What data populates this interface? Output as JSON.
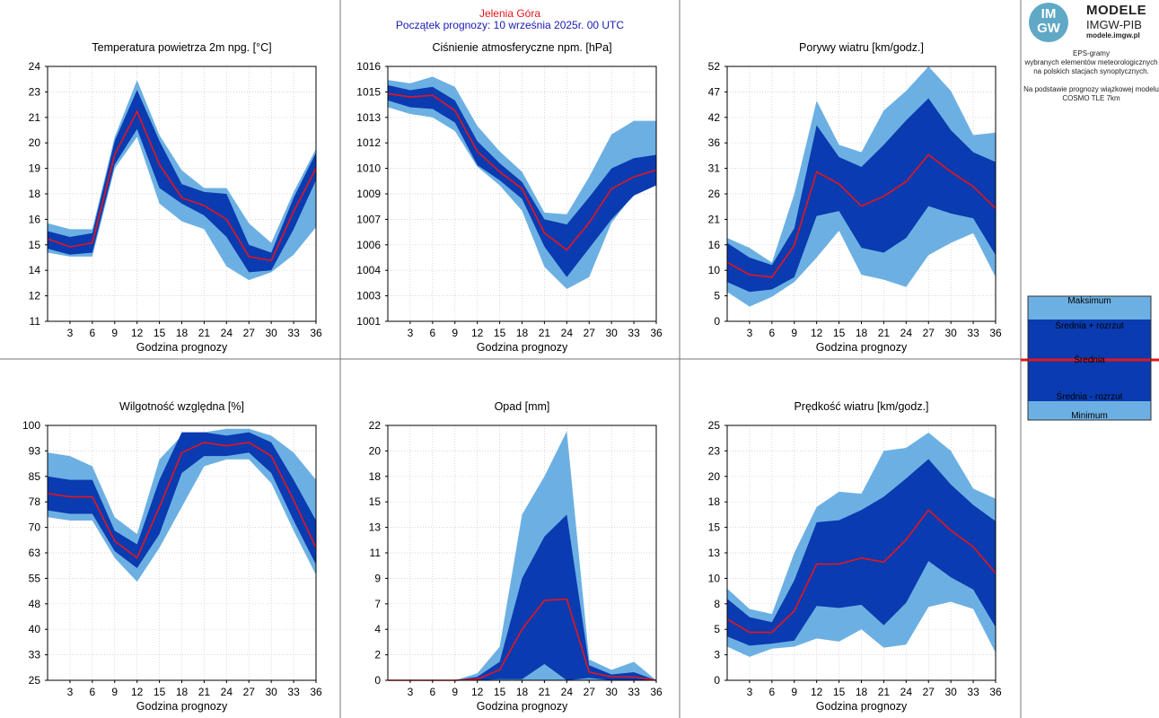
{
  "header": {
    "station": "Jelenia Góra",
    "forecast_start": "Początek prognozy: 10 września 2025r. 00 UTC"
  },
  "logo": {
    "badge_top": "IM",
    "badge_bottom": "GW",
    "line1": "MODELE",
    "line2": "IMGW-PIB",
    "line3": "modele.imgw.pl"
  },
  "info": {
    "line1": "EPS-gramy",
    "line2": "wybranych elementów meteorologicznych",
    "line3": "na polskich stacjach  synoptycznych.",
    "line4": "Na podstawie prognozy wiązkowej modelu",
    "line5": "COSMO TLE 7km"
  },
  "legend": {
    "max": "Maksimum",
    "mean_plus": "Średnia + rozrzut",
    "mean": "Średnia",
    "mean_minus": "Średnia - rozrzut",
    "min": "Minimum"
  },
  "colors": {
    "outer_band": "#6cb0e3",
    "inner_band": "#0a3bb0",
    "mean_line": "#e8141b",
    "frame": "#000000",
    "grid": "#c8c8c8"
  },
  "chart_data": [
    {
      "type": "area",
      "title": "Temperatura powietrza 2m npg. [°C]",
      "xlabel": "Godzina prognozy",
      "ylabel": "",
      "x": [
        0,
        3,
        6,
        9,
        12,
        15,
        18,
        21,
        24,
        27,
        30,
        33,
        36
      ],
      "xticks": [
        3,
        6,
        9,
        12,
        15,
        18,
        21,
        24,
        27,
        30,
        33,
        36
      ],
      "ylim": [
        11,
        24
      ],
      "yticks": [
        "11",
        "12",
        "14",
        "15",
        "16",
        "18",
        "19",
        "20",
        "21",
        "23",
        "24"
      ],
      "grid": true,
      "series": [
        {
          "name": "Maksimum",
          "values": [
            16.0,
            15.7,
            15.7,
            20.4,
            23.3,
            20.5,
            18.7,
            17.8,
            17.8,
            16.0,
            15.0,
            17.6,
            19.8
          ]
        },
        {
          "name": "Średnia + rozrzut",
          "values": [
            15.6,
            15.3,
            15.5,
            20.2,
            22.8,
            20.2,
            18.0,
            17.6,
            17.5,
            14.9,
            14.5,
            17.3,
            19.6
          ]
        },
        {
          "name": "Średnia",
          "values": [
            15.2,
            14.8,
            15.0,
            19.5,
            21.7,
            19.0,
            17.3,
            16.9,
            16.2,
            14.3,
            14.1,
            16.6,
            18.8
          ]
        },
        {
          "name": "Średnia - rozrzut",
          "values": [
            14.7,
            14.4,
            14.5,
            19.0,
            20.8,
            17.8,
            17.0,
            16.4,
            15.3,
            13.5,
            13.6,
            15.7,
            18.2
          ]
        },
        {
          "name": "Minimum",
          "values": [
            14.5,
            14.3,
            14.3,
            18.8,
            20.4,
            17.0,
            16.1,
            15.7,
            13.8,
            13.1,
            13.5,
            14.4,
            15.8
          ]
        }
      ]
    },
    {
      "type": "area",
      "title": "Ciśnienie atmosferyczne npm. [hPa]",
      "xlabel": "Godzina prognozy",
      "ylabel": "",
      "x": [
        0,
        3,
        6,
        9,
        12,
        15,
        18,
        21,
        24,
        27,
        30,
        33,
        36
      ],
      "xticks": [
        3,
        6,
        9,
        12,
        15,
        18,
        21,
        24,
        27,
        30,
        33,
        36
      ],
      "ylim": [
        1001,
        1016
      ],
      "yticks": [
        "1001",
        "1003",
        "1004",
        "1006",
        "1007",
        "1009",
        "1010",
        "1012",
        "1013",
        "1015",
        "1016"
      ],
      "grid": true,
      "series": [
        {
          "name": "Maksimum",
          "values": [
            1015.2,
            1015.0,
            1015.4,
            1014.8,
            1012.5,
            1011.0,
            1009.8,
            1007.4,
            1007.3,
            1009.5,
            1012.0,
            1012.8,
            1012.8
          ]
        },
        {
          "name": "Średnia + rozrzut",
          "values": [
            1014.9,
            1014.6,
            1014.8,
            1014.0,
            1011.6,
            1010.3,
            1009.2,
            1007.0,
            1006.7,
            1008.3,
            1010.0,
            1010.6,
            1010.8
          ]
        },
        {
          "name": "Średnia",
          "values": [
            1014.4,
            1014.2,
            1014.3,
            1013.4,
            1011.0,
            1009.8,
            1008.8,
            1006.2,
            1005.2,
            1006.8,
            1008.8,
            1009.5,
            1009.9
          ]
        },
        {
          "name": "Średnia - rozrzut",
          "values": [
            1014.0,
            1013.6,
            1013.5,
            1012.7,
            1010.2,
            1009.3,
            1008.2,
            1005.4,
            1003.6,
            1005.3,
            1007.0,
            1008.4,
            1009.0
          ]
        },
        {
          "name": "Minimum",
          "values": [
            1013.6,
            1013.2,
            1013.0,
            1012.2,
            1010.1,
            1009.0,
            1007.5,
            1004.2,
            1002.9,
            1003.6,
            1006.8,
            1008.5,
            1009.2
          ]
        }
      ]
    },
    {
      "type": "area",
      "title": "Porywy wiatru [km/godz.]",
      "xlabel": "Godzina prognozy",
      "ylabel": "",
      "x": [
        0,
        3,
        6,
        9,
        12,
        15,
        18,
        21,
        24,
        27,
        30,
        33,
        36
      ],
      "xticks": [
        3,
        6,
        9,
        12,
        15,
        18,
        21,
        24,
        27,
        30,
        33,
        36
      ],
      "ylim": [
        0,
        52
      ],
      "yticks": [
        "0",
        "5",
        "10",
        "16",
        "21",
        "26",
        "31",
        "36",
        "42",
        "47",
        "52"
      ],
      "grid": true,
      "series": [
        {
          "name": "Maksimum",
          "values": [
            17.0,
            15.0,
            12.0,
            26.0,
            45.0,
            36.0,
            34.5,
            43.0,
            47.0,
            52.0,
            47.0,
            38.0,
            38.5
          ]
        },
        {
          "name": "Średnia + rozrzut",
          "values": [
            16.0,
            13.0,
            11.5,
            19.0,
            40.0,
            33.5,
            31.5,
            36.0,
            41.0,
            45.5,
            39.0,
            34.5,
            32.5
          ]
        },
        {
          "name": "Średnia",
          "values": [
            12.0,
            9.5,
            9.0,
            15.5,
            30.5,
            28.0,
            23.5,
            25.5,
            28.5,
            34.0,
            30.5,
            27.5,
            23.0
          ]
        },
        {
          "name": "Średnia - rozrzut",
          "values": [
            8.0,
            6.0,
            6.5,
            9.0,
            21.5,
            22.5,
            15.0,
            14.0,
            17.0,
            23.5,
            22.0,
            21.0,
            13.5
          ]
        },
        {
          "name": "Minimum",
          "values": [
            6.0,
            3.0,
            5.0,
            8.0,
            13.0,
            18.5,
            9.5,
            8.5,
            7.0,
            13.5,
            16.0,
            18.0,
            9.0
          ]
        }
      ]
    },
    {
      "type": "area",
      "title": "Wilgotność względna [%]",
      "xlabel": "Godzina prognozy",
      "ylabel": "",
      "x": [
        0,
        3,
        6,
        9,
        12,
        15,
        18,
        21,
        24,
        27,
        30,
        33,
        36
      ],
      "xticks": [
        3,
        6,
        9,
        12,
        15,
        18,
        21,
        24,
        27,
        30,
        33,
        36
      ],
      "ylim": [
        25,
        100
      ],
      "yticks": [
        "25",
        "33",
        "40",
        "48",
        "55",
        "63",
        "70",
        "78",
        "85",
        "93",
        "100"
      ],
      "grid": true,
      "series": [
        {
          "name": "Maksimum",
          "values": [
            92.0,
            91.0,
            88.0,
            73.0,
            68.0,
            90.0,
            97.0,
            98.0,
            99.0,
            99.0,
            97.0,
            92.0,
            84.0
          ]
        },
        {
          "name": "Średnia + rozrzut",
          "values": [
            85.0,
            84.0,
            84.0,
            69.0,
            65.0,
            84.0,
            98.0,
            98.0,
            97.0,
            98.0,
            95.0,
            84.0,
            72.0
          ]
        },
        {
          "name": "Średnia",
          "values": [
            80.0,
            79.0,
            79.0,
            66.0,
            61.0,
            76.0,
            92.0,
            95.0,
            94.0,
            95.0,
            91.0,
            78.0,
            64.0
          ]
        },
        {
          "name": "Średnia - rozrzut",
          "values": [
            75.0,
            74.0,
            74.0,
            63.0,
            58.0,
            68.0,
            86.0,
            91.0,
            91.0,
            92.0,
            86.0,
            72.0,
            59.0
          ]
        },
        {
          "name": "Minimum",
          "values": [
            73.0,
            72.0,
            72.0,
            61.0,
            54.0,
            64.0,
            76.0,
            88.0,
            90.0,
            90.0,
            83.0,
            69.0,
            56.0
          ]
        }
      ]
    },
    {
      "type": "area",
      "title": "Opad [mm]",
      "xlabel": "Godzina prognozy",
      "ylabel": "",
      "x": [
        0,
        3,
        6,
        9,
        12,
        15,
        18,
        21,
        24,
        27,
        30,
        33,
        36
      ],
      "xticks": [
        3,
        6,
        9,
        12,
        15,
        18,
        21,
        24,
        27,
        30,
        33,
        36
      ],
      "ylim": [
        0,
        22
      ],
      "yticks": [
        "0",
        "2",
        "4",
        "7",
        "9",
        "11",
        "13",
        "15",
        "18",
        "20",
        "22"
      ],
      "grid": true,
      "series": [
        {
          "name": "Maksimum",
          "values": [
            0.0,
            0.0,
            0.0,
            0.0,
            0.6,
            2.9,
            14.3,
            17.6,
            21.5,
            1.8,
            0.9,
            1.6,
            0.0
          ]
        },
        {
          "name": "Średnia + rozrzut",
          "values": [
            0.0,
            0.0,
            0.0,
            0.0,
            0.3,
            1.6,
            8.8,
            12.4,
            14.3,
            1.3,
            0.5,
            0.7,
            0.0
          ]
        },
        {
          "name": "Średnia",
          "values": [
            0.0,
            0.0,
            0.0,
            0.0,
            0.1,
            0.9,
            4.4,
            6.9,
            7.0,
            0.7,
            0.3,
            0.3,
            0.0
          ]
        },
        {
          "name": "Średnia - rozrzut",
          "values": [
            0.0,
            0.0,
            0.0,
            0.0,
            0.0,
            0.1,
            0.1,
            1.4,
            0.0,
            0.2,
            0.0,
            0.0,
            0.0
          ]
        },
        {
          "name": "Minimum",
          "values": [
            0.0,
            0.0,
            0.0,
            0.0,
            0.0,
            0.0,
            0.0,
            0.0,
            0.0,
            0.0,
            0.0,
            0.0,
            0.0
          ]
        }
      ]
    },
    {
      "type": "area",
      "title": "Prędkość wiatru [km/godz.]",
      "xlabel": "Godzina prognozy",
      "ylabel": "",
      "x": [
        0,
        3,
        6,
        9,
        12,
        15,
        18,
        21,
        24,
        27,
        30,
        33,
        36
      ],
      "xticks": [
        3,
        6,
        9,
        12,
        15,
        18,
        21,
        24,
        27,
        30,
        33,
        36
      ],
      "ylim": [
        0,
        25
      ],
      "yticks": [
        "0",
        "3",
        "5",
        "8",
        "10",
        "13",
        "15",
        "18",
        "20",
        "23",
        "25"
      ],
      "grid": true,
      "series": [
        {
          "name": "Maksimum",
          "values": [
            9.0,
            7.0,
            6.5,
            12.5,
            17.0,
            18.5,
            18.3,
            22.5,
            22.8,
            24.3,
            22.5,
            18.8,
            17.8
          ]
        },
        {
          "name": "Średnia + rozrzut",
          "values": [
            8.0,
            6.2,
            5.7,
            9.8,
            15.5,
            15.7,
            16.7,
            18.0,
            19.8,
            21.7,
            19.2,
            17.2,
            15.6
          ]
        },
        {
          "name": "Średnia",
          "values": [
            6.0,
            4.7,
            4.7,
            6.8,
            11.4,
            11.4,
            12.0,
            11.6,
            13.8,
            16.7,
            14.7,
            13.1,
            10.5
          ]
        },
        {
          "name": "Średnia - rozrzut",
          "values": [
            4.3,
            3.4,
            3.6,
            3.9,
            7.3,
            7.1,
            7.4,
            5.4,
            7.6,
            11.7,
            10.1,
            8.9,
            5.2
          ]
        },
        {
          "name": "Minimum",
          "values": [
            3.3,
            2.3,
            3.1,
            3.3,
            4.1,
            3.8,
            5.0,
            3.2,
            3.5,
            7.2,
            7.7,
            7.0,
            2.7
          ]
        }
      ]
    }
  ]
}
